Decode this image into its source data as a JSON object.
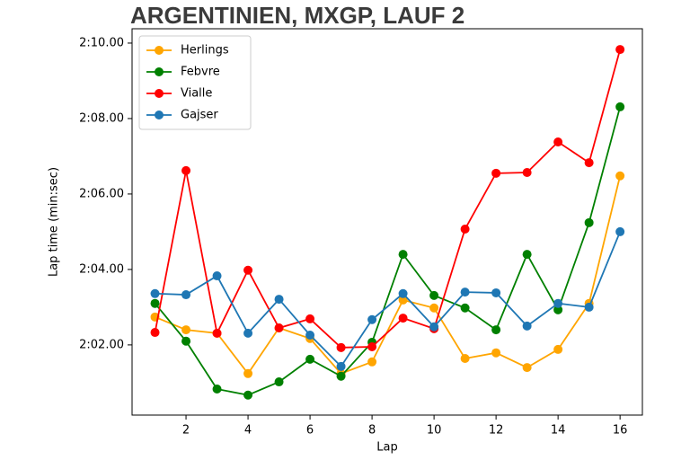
{
  "chart_data": {
    "type": "line",
    "title": "ARGENTINIEN, MXGP, LAUF 2",
    "x_label": "Lap",
    "y_label": "Lap time (min:sec)",
    "x": [
      1,
      2,
      3,
      4,
      5,
      6,
      7,
      8,
      9,
      10,
      11,
      12,
      13,
      14,
      15,
      16
    ],
    "series": [
      {
        "name": "Herlings",
        "color": "#ffa500",
        "values": [
          122.74,
          122.4,
          122.31,
          121.24,
          122.45,
          122.17,
          121.24,
          121.55,
          123.19,
          122.98,
          121.64,
          121.79,
          121.4,
          121.88,
          123.1,
          126.48
        ]
      },
      {
        "name": "Febvre",
        "color": "#008000",
        "values": [
          123.1,
          122.1,
          120.83,
          120.67,
          121.02,
          121.62,
          121.17,
          122.07,
          124.4,
          123.31,
          122.98,
          122.4,
          124.4,
          122.93,
          125.24,
          128.31
        ]
      },
      {
        "name": "Vialle",
        "color": "#ff0000",
        "values": [
          122.33,
          126.62,
          122.31,
          123.98,
          122.45,
          122.69,
          121.93,
          121.95,
          122.71,
          122.43,
          125.07,
          126.55,
          126.57,
          127.38,
          126.83,
          129.83
        ]
      },
      {
        "name": "Gajser",
        "color": "#1f77b4",
        "values": [
          123.36,
          123.33,
          123.83,
          122.31,
          123.21,
          122.26,
          121.43,
          122.67,
          123.36,
          122.48,
          123.4,
          123.38,
          122.5,
          123.1,
          123.0,
          125.0
        ]
      }
    ],
    "xlim": [
      0.26,
      16.72
    ],
    "xticks": [
      2,
      4,
      6,
      8,
      10,
      12,
      14,
      16
    ],
    "ylim": [
      120.14,
      130.38
    ],
    "yticks": [
      {
        "value": 122,
        "label": "2:02.00"
      },
      {
        "value": 124,
        "label": "2:04.00"
      },
      {
        "value": 126,
        "label": "2:06.00"
      },
      {
        "value": 128,
        "label": "2:08.00"
      },
      {
        "value": 130,
        "label": "2:10.00"
      }
    ],
    "legend": "upper left",
    "grid": false
  }
}
